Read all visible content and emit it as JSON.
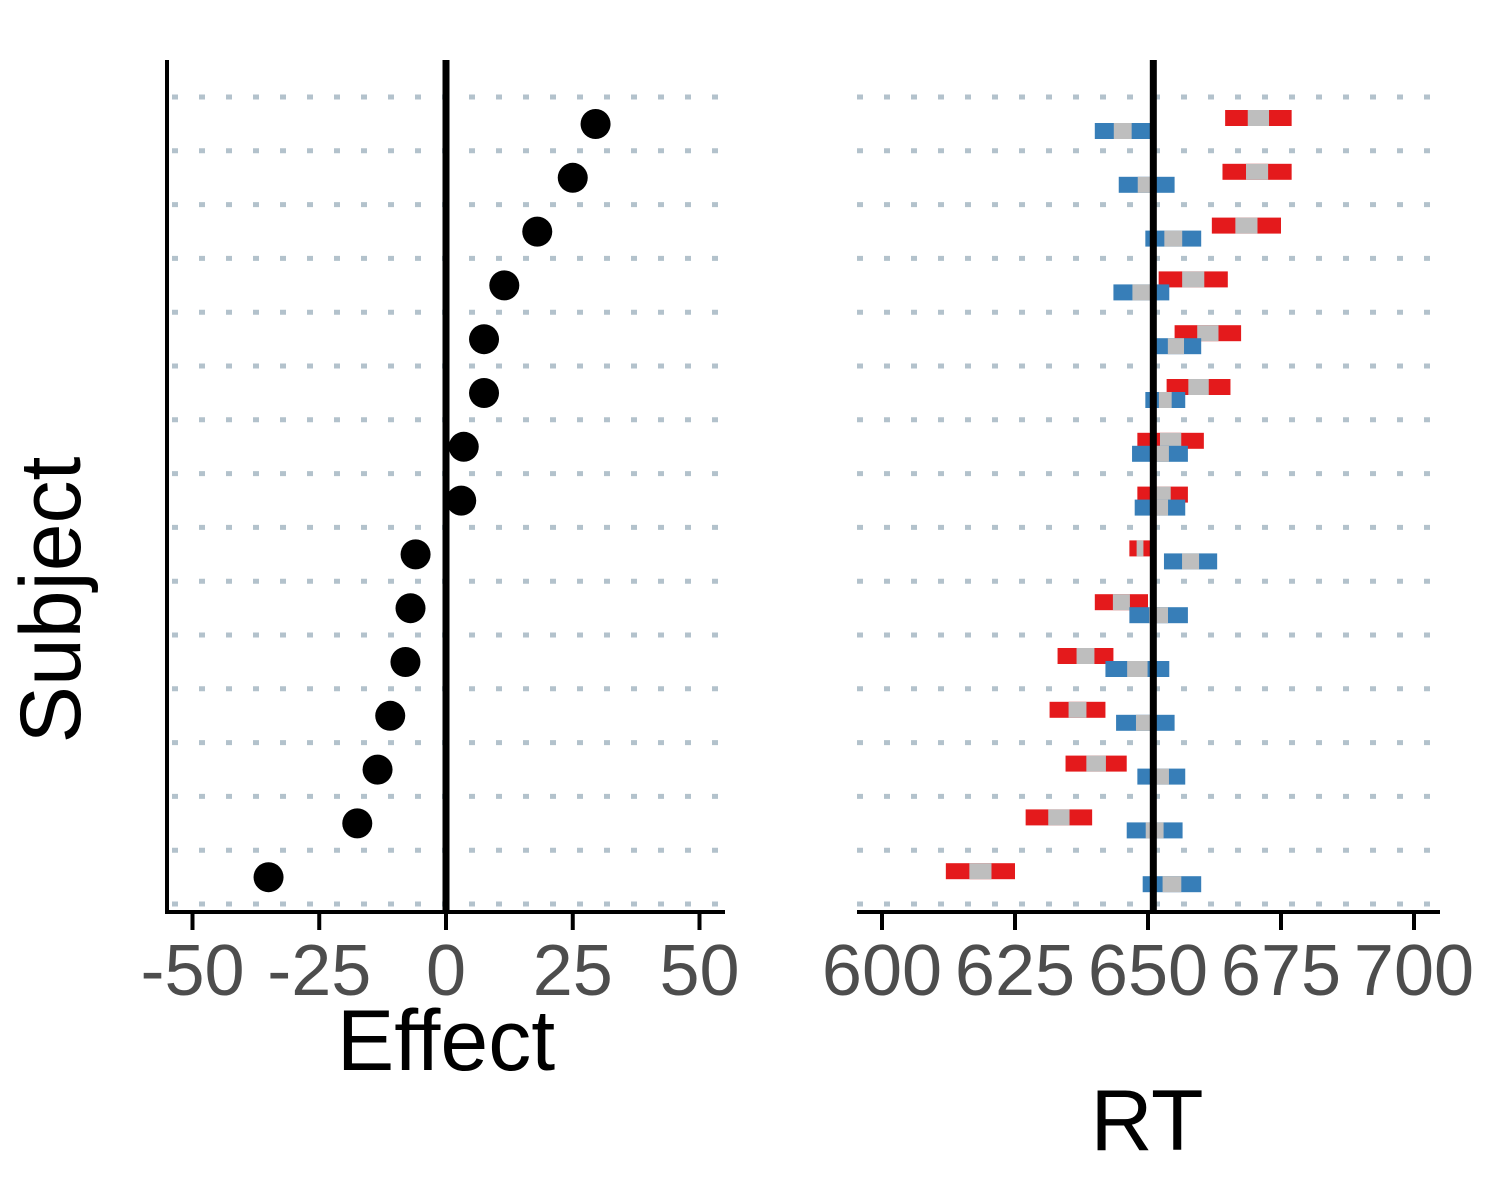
{
  "chart_data": [
    {
      "type": "scatter",
      "xlabel": "Effect",
      "ylabel": "Subject",
      "xlim": [
        -55,
        55
      ],
      "x_ticks": [
        -50,
        -25,
        0,
        25,
        50
      ],
      "x_tick_labels": [
        "-50",
        "-25",
        "0",
        "25",
        "50"
      ],
      "reference_line_x": 0,
      "grid": "dotted horizontal",
      "point_color": "#000000",
      "values": [
        29.5,
        25.0,
        18.0,
        11.5,
        7.5,
        7.5,
        3.5,
        3.0,
        -6.0,
        -7.0,
        -8.0,
        -11.0,
        -13.5,
        -17.5,
        -35.0
      ]
    },
    {
      "type": "interval",
      "xlabel": "RT",
      "x_ticks": [
        600,
        625,
        650,
        675,
        700
      ],
      "x_tick_labels": [
        "600",
        "625",
        "650",
        "675",
        "700"
      ],
      "xlim": [
        595,
        705
      ],
      "reference_line_x": 651,
      "grid": "dotted horizontal",
      "colors": {
        "red": "#e41a1c",
        "blue": "#377eb8",
        "center": "#bebebe"
      },
      "red_intervals": [
        [
          664.5,
          677
        ],
        [
          664,
          677
        ],
        [
          662,
          675
        ],
        [
          652,
          665
        ],
        [
          655,
          667.5
        ],
        [
          653.5,
          665.5
        ],
        [
          648,
          660.5
        ],
        [
          648,
          657.5
        ],
        [
          646.5,
          650.5
        ],
        [
          640,
          650
        ],
        [
          633,
          643.5
        ],
        [
          631.5,
          642
        ],
        [
          634.5,
          646
        ],
        [
          627,
          639.5
        ],
        [
          612,
          625
        ]
      ],
      "blue_intervals": [
        [
          640,
          650.5
        ],
        [
          644.5,
          655
        ],
        [
          649.5,
          660
        ],
        [
          643.5,
          654
        ],
        [
          650.5,
          660
        ],
        [
          649.5,
          657
        ],
        [
          647,
          657.5
        ],
        [
          647.5,
          657
        ],
        [
          653,
          663
        ],
        [
          646.5,
          657.5
        ],
        [
          642,
          654
        ],
        [
          644,
          655
        ],
        [
          648,
          657
        ],
        [
          646,
          656.5
        ],
        [
          649,
          660
        ]
      ]
    }
  ]
}
